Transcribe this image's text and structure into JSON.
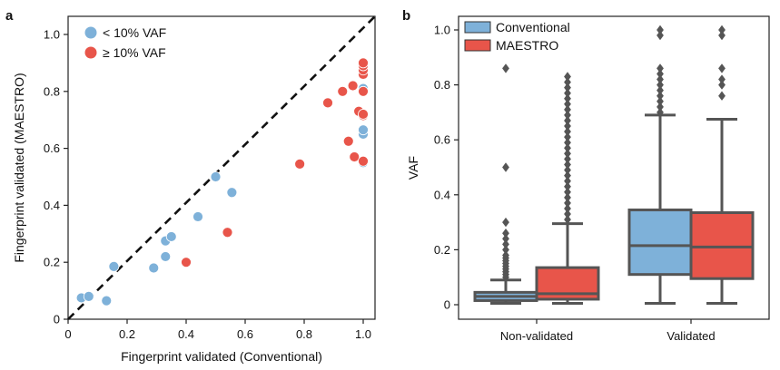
{
  "chart_data": [
    {
      "panel": "a",
      "type": "scatter",
      "xlabel": "Fingerprint validated (Conventional)",
      "ylabel": "Fingerprint validated (MAESTRO)",
      "xlim": [
        0,
        1.0
      ],
      "ylim": [
        0,
        1.0
      ],
      "xticks": [
        "0",
        "0.2",
        "0.4",
        "0.6",
        "0.8",
        "1.0"
      ],
      "yticks": [
        "0",
        "0.2",
        "0.4",
        "0.6",
        "0.8",
        "1.0"
      ],
      "tick_values": [
        0,
        0.2,
        0.4,
        0.6,
        0.8,
        1.0
      ],
      "reference_line": "y = x (dashed)",
      "legend_position": "top-left",
      "series": [
        {
          "name": "< 10% VAF",
          "color": "#7eb1d9",
          "points": [
            [
              0.045,
              0.075
            ],
            [
              0.07,
              0.08
            ],
            [
              0.13,
              0.065
            ],
            [
              0.155,
              0.185
            ],
            [
              0.29,
              0.18
            ],
            [
              0.33,
              0.22
            ],
            [
              0.33,
              0.275
            ],
            [
              0.35,
              0.29
            ],
            [
              0.44,
              0.36
            ],
            [
              0.5,
              0.5
            ],
            [
              0.555,
              0.445
            ],
            [
              1.0,
              0.55
            ],
            [
              1.0,
              0.65
            ],
            [
              1.0,
              0.665
            ],
            [
              1.0,
              0.81
            ]
          ]
        },
        {
          "name": "≥ 10% VAF",
          "color": "#e8554a",
          "points": [
            [
              0.4,
              0.2
            ],
            [
              0.54,
              0.305
            ],
            [
              0.785,
              0.545
            ],
            [
              0.88,
              0.76
            ],
            [
              0.93,
              0.8
            ],
            [
              0.965,
              0.82
            ],
            [
              0.95,
              0.625
            ],
            [
              0.97,
              0.57
            ],
            [
              0.985,
              0.73
            ],
            [
              1.0,
              0.555
            ],
            [
              1.0,
              0.715
            ],
            [
              1.0,
              0.72
            ],
            [
              1.0,
              0.8
            ],
            [
              1.0,
              0.86
            ],
            [
              1.0,
              0.875
            ],
            [
              1.0,
              0.89
            ],
            [
              1.0,
              0.9
            ]
          ]
        }
      ]
    },
    {
      "panel": "b",
      "type": "box",
      "ylabel": "VAF",
      "categories": [
        "Non-validated",
        "Validated"
      ],
      "ylim": [
        0,
        1.0
      ],
      "yticks": [
        "0",
        "0.2",
        "0.4",
        "0.6",
        "0.8",
        "1.0"
      ],
      "tick_values": [
        0,
        0.2,
        0.4,
        0.6,
        0.8,
        1.0
      ],
      "legend_position": "top-left",
      "series": [
        {
          "name": "Conventional",
          "color": "#7eb1d9",
          "boxes": [
            {
              "whislo": 0.005,
              "q1": 0.015,
              "med": 0.03,
              "q3": 0.045,
              "whishi": 0.09,
              "fliers": [
                0.1,
                0.11,
                0.12,
                0.13,
                0.14,
                0.15,
                0.16,
                0.17,
                0.18,
                0.2,
                0.22,
                0.24,
                0.26,
                0.3,
                0.5,
                0.86
              ]
            },
            {
              "whislo": 0.005,
              "q1": 0.11,
              "med": 0.215,
              "q3": 0.345,
              "whishi": 0.69,
              "fliers": [
                0.7,
                0.72,
                0.74,
                0.76,
                0.78,
                0.8,
                0.82,
                0.84,
                0.86,
                0.98,
                1.0
              ]
            }
          ]
        },
        {
          "name": "MAESTRO",
          "color": "#e8554a",
          "boxes": [
            {
              "whislo": 0.005,
              "q1": 0.02,
              "med": 0.04,
              "q3": 0.135,
              "whishi": 0.295,
              "fliers": [
                0.31,
                0.33,
                0.35,
                0.37,
                0.39,
                0.41,
                0.43,
                0.45,
                0.47,
                0.49,
                0.51,
                0.53,
                0.55,
                0.57,
                0.59,
                0.61,
                0.63,
                0.65,
                0.67,
                0.69,
                0.71,
                0.73,
                0.75,
                0.77,
                0.79,
                0.81,
                0.83
              ]
            },
            {
              "whislo": 0.005,
              "q1": 0.095,
              "med": 0.21,
              "q3": 0.335,
              "whishi": 0.675,
              "fliers": [
                0.76,
                0.8,
                0.82,
                0.86,
                0.98,
                1.0
              ]
            }
          ]
        }
      ]
    }
  ]
}
